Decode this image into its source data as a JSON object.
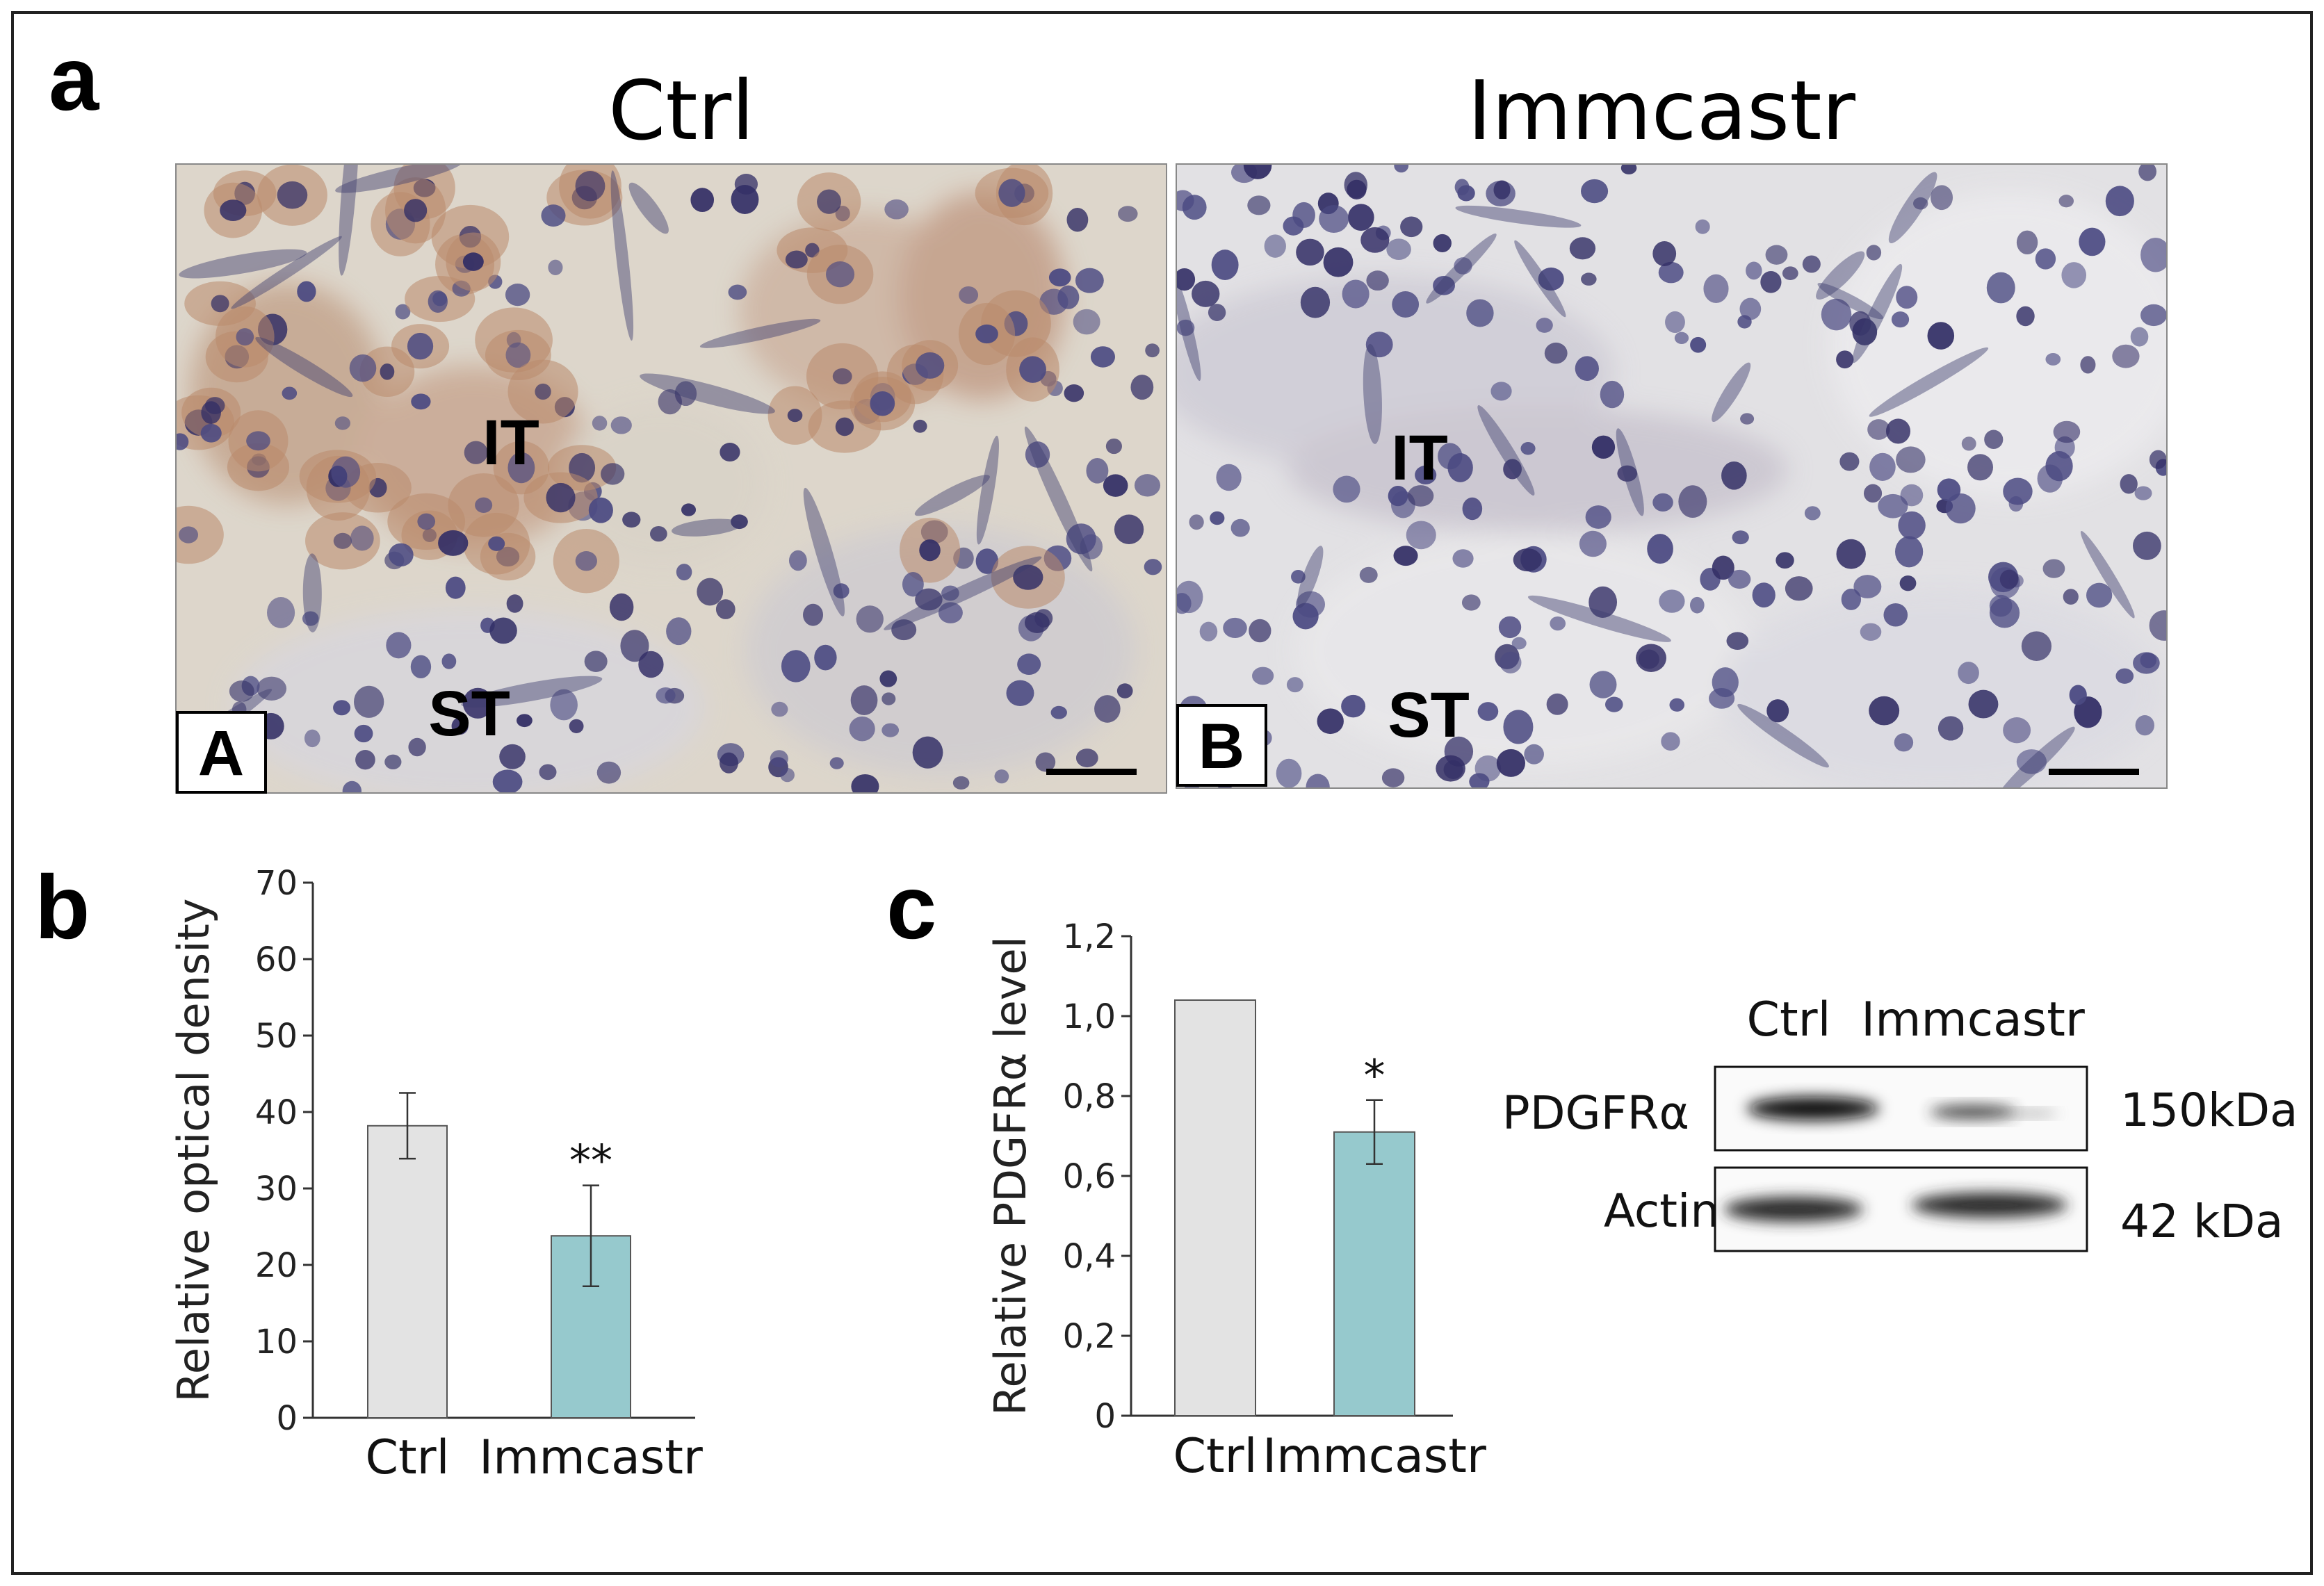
{
  "panels": {
    "a": "a",
    "b": "b",
    "c": "c"
  },
  "micrographs": [
    {
      "condition": "Ctrl",
      "sub_label": "A",
      "it_label": "IT",
      "st_label": "ST"
    },
    {
      "condition": "Immcastr",
      "sub_label": "B",
      "it_label": "IT",
      "st_label": "ST"
    }
  ],
  "western_blot": {
    "lanes": [
      "Ctrl",
      "Immcastr"
    ],
    "rows": [
      {
        "protein": "PDGFRα",
        "size": "150kDa"
      },
      {
        "protein": "Actin",
        "size": "42 kDa"
      }
    ]
  },
  "colors": {
    "ctrl_bar": "#e3e3e3",
    "immcastr_bar": "#96c9cd",
    "axis": "#333333"
  },
  "chart_data": [
    {
      "type": "bar",
      "panel": "b",
      "title": "",
      "xlabel": "",
      "ylabel": "Relative optical density",
      "categories": [
        "Ctrl",
        "Immcastr"
      ],
      "values": [
        38.2,
        23.8
      ],
      "errors": [
        4.3,
        6.6
      ],
      "significance": [
        "",
        "**"
      ],
      "ylim": [
        0,
        70
      ],
      "yticks": [
        0,
        10,
        20,
        30,
        40,
        50,
        60,
        70
      ],
      "ytick_labels": [
        "0",
        "10",
        "20",
        "30",
        "40",
        "50",
        "60",
        "70"
      ],
      "grid": false
    },
    {
      "type": "bar",
      "panel": "c",
      "title": "",
      "xlabel": "",
      "ylabel": "Relative PDGFRα level",
      "categories": [
        "Ctrl",
        "Immcastr"
      ],
      "values": [
        1.04,
        0.71
      ],
      "errors": [
        0.0,
        0.08
      ],
      "significance": [
        "",
        "*"
      ],
      "ylim": [
        0,
        1.2
      ],
      "yticks": [
        0,
        0.2,
        0.4,
        0.6,
        0.8,
        1.0,
        1.2
      ],
      "ytick_labels": [
        "0",
        "0,2",
        "0,4",
        "0,6",
        "0,8",
        "1,0",
        "1,2"
      ],
      "grid": false
    }
  ]
}
